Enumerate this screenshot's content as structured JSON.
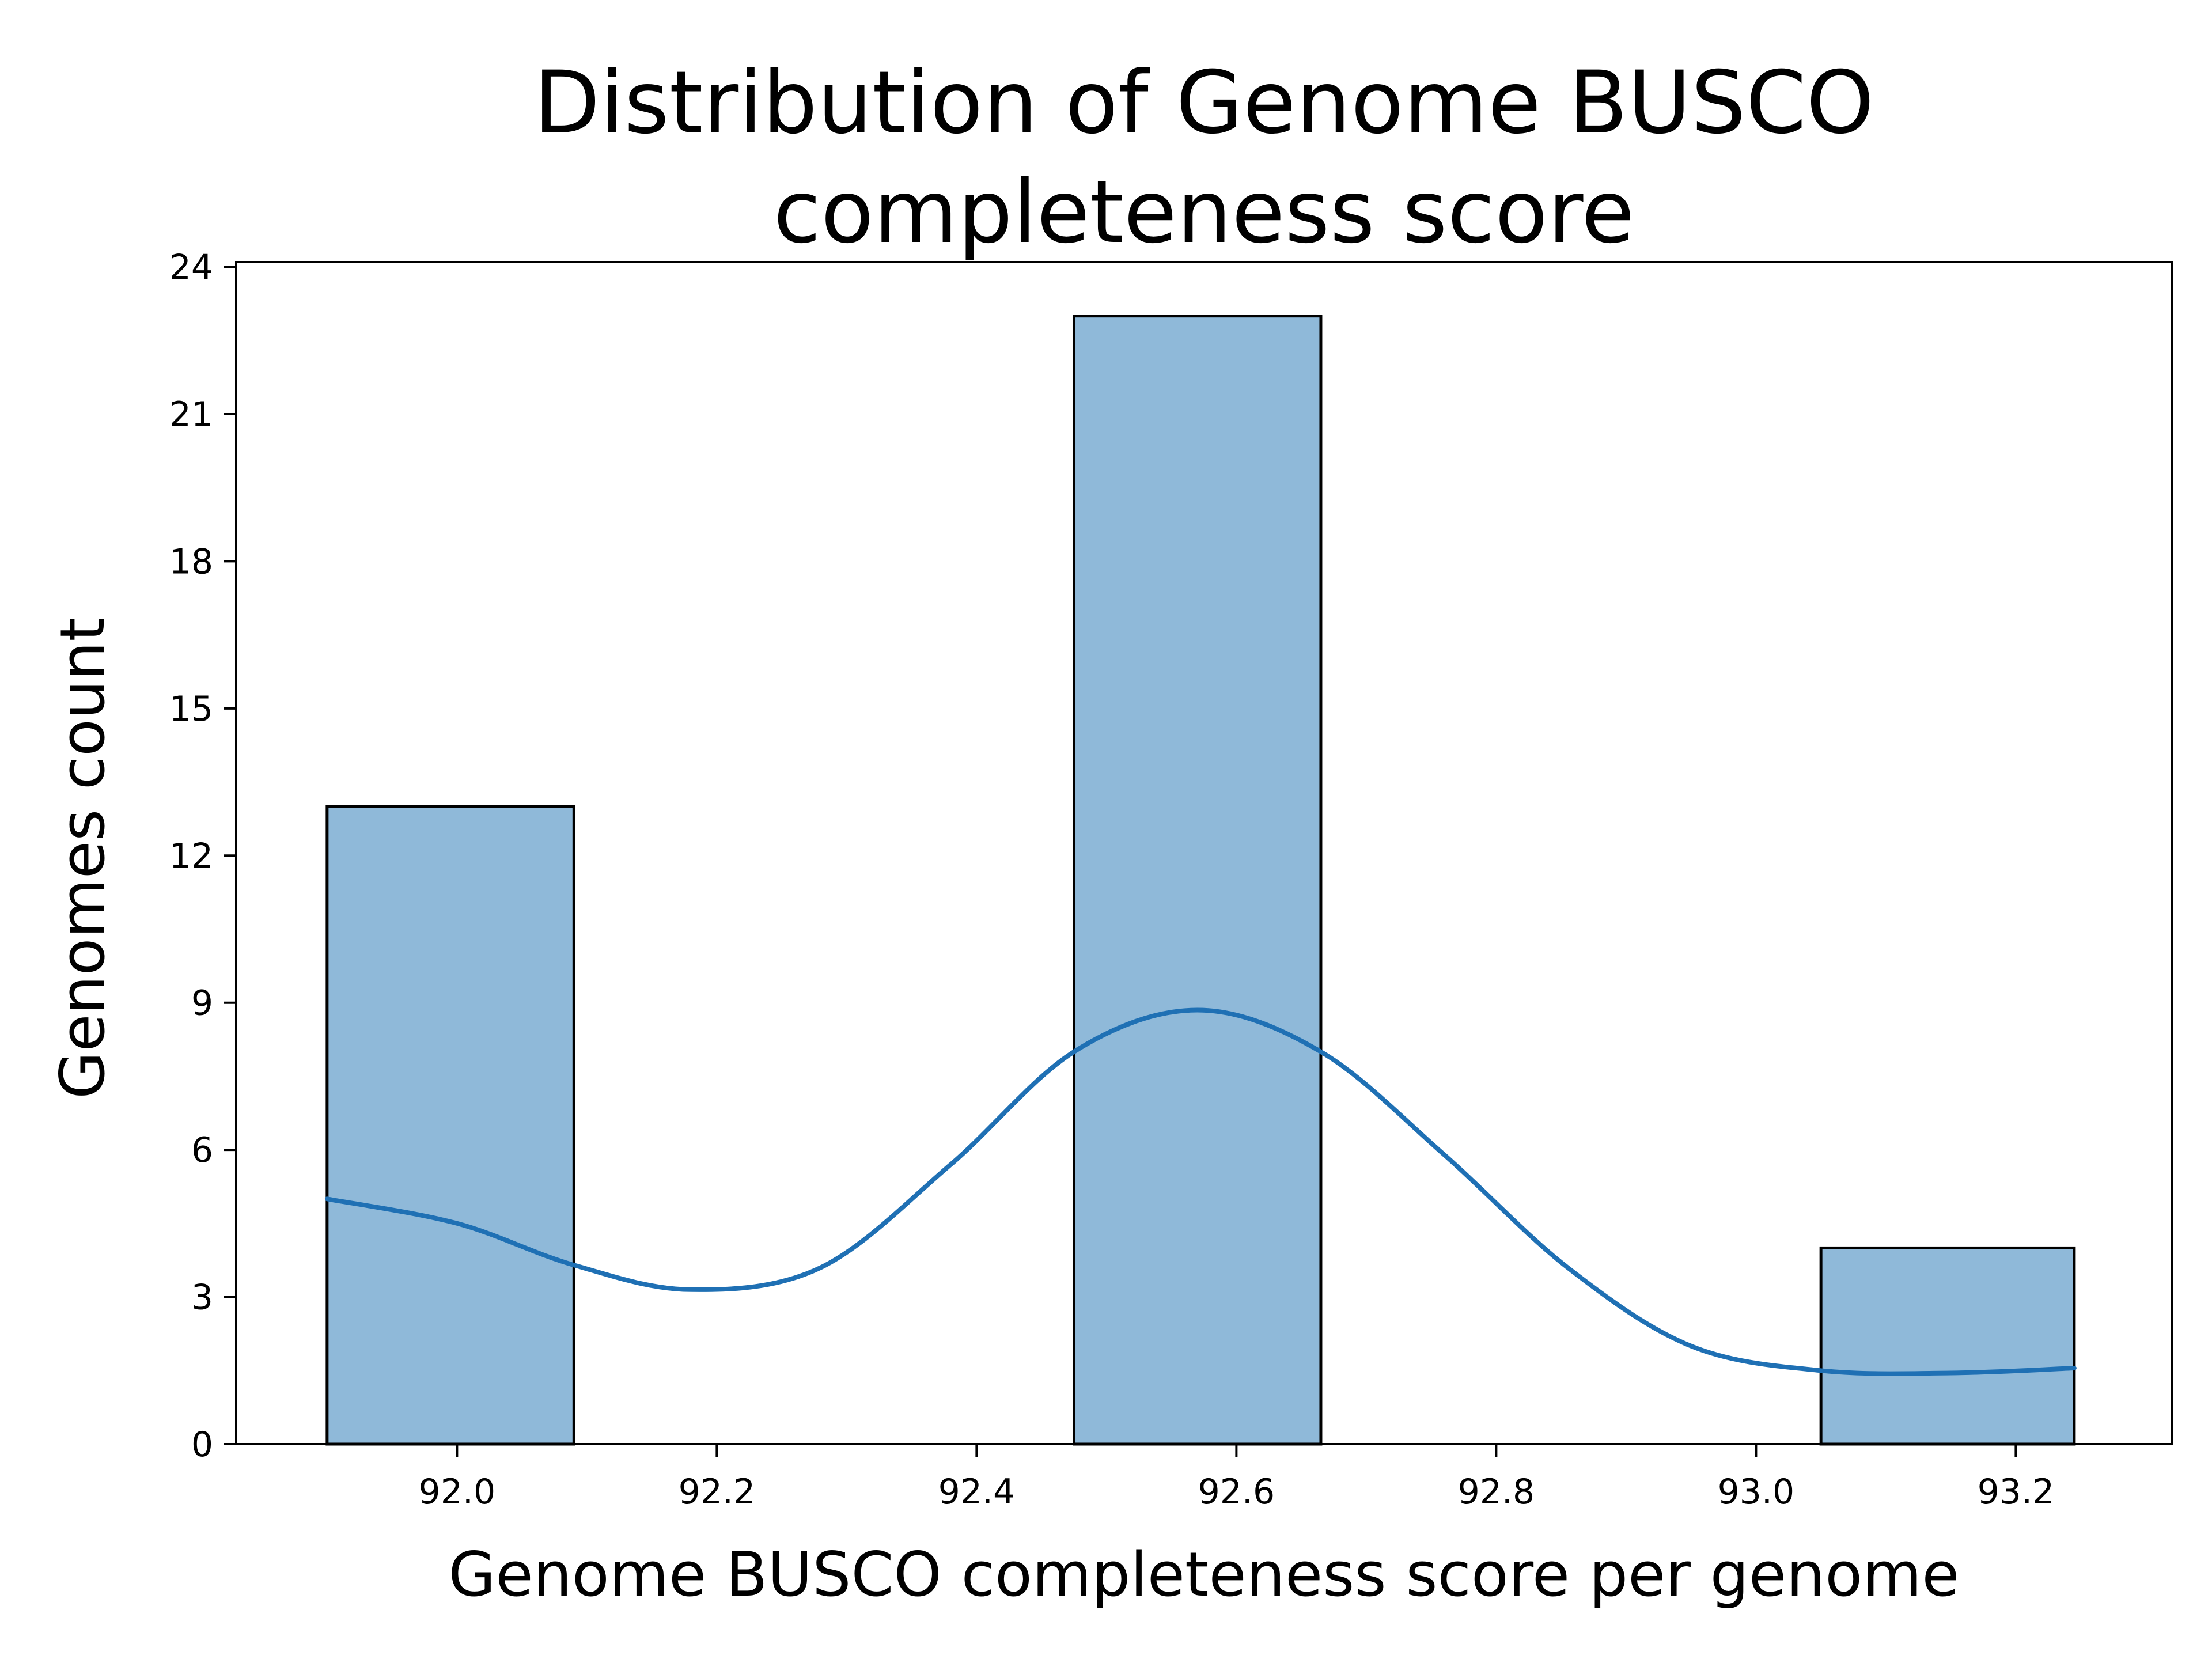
{
  "chart_data": {
    "type": "bar",
    "subtype": "histogram with kde line",
    "title_lines": [
      "Distribution of Genome BUSCO",
      "completeness score"
    ],
    "xlabel": "Genome BUSCO completeness score per genome",
    "ylabel": "Genomes count",
    "xlim": [
      91.83,
      93.32
    ],
    "ylim": [
      0,
      24.1
    ],
    "x_ticks": [
      92.0,
      92.2,
      92.4,
      92.6,
      92.8,
      93.0,
      93.2
    ],
    "x_tick_labels": [
      "92.0",
      "92.2",
      "92.4",
      "92.6",
      "92.8",
      "93.0",
      "93.2"
    ],
    "y_ticks": [
      0,
      3,
      6,
      9,
      12,
      15,
      18,
      21,
      24
    ],
    "y_tick_labels": [
      "0",
      "3",
      "6",
      "9",
      "12",
      "15",
      "18",
      "21",
      "24"
    ],
    "bins": [
      {
        "x0": 91.9,
        "x1": 92.09,
        "count": 13
      },
      {
        "x0": 92.09,
        "x1": 92.28,
        "count": 0
      },
      {
        "x0": 92.28,
        "x1": 92.475,
        "count": 0
      },
      {
        "x0": 92.475,
        "x1": 92.665,
        "count": 23
      },
      {
        "x0": 92.665,
        "x1": 92.855,
        "count": 0
      },
      {
        "x0": 92.855,
        "x1": 93.05,
        "count": 0
      },
      {
        "x0": 93.05,
        "x1": 93.245,
        "count": 4
      }
    ],
    "kde": {
      "x": [
        91.9,
        92.0,
        92.09,
        92.18,
        92.28,
        92.38,
        92.475,
        92.57,
        92.665,
        92.76,
        92.855,
        92.95,
        93.05,
        93.15,
        93.245
      ],
      "y": [
        5.0,
        4.5,
        3.65,
        3.15,
        3.6,
        5.7,
        8.0,
        8.85,
        8.0,
        5.9,
        3.6,
        2.0,
        1.5,
        1.45,
        1.55
      ]
    },
    "colors": {
      "bar_fill": "#8fb9d9",
      "bar_edge": "#000000",
      "kde_line": "#1f70b4"
    },
    "grid": false,
    "legend": "none"
  }
}
